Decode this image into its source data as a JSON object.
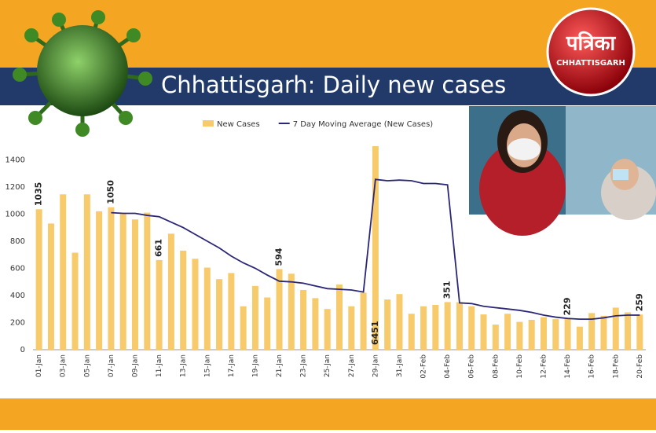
{
  "logo": {
    "name": "पत्रिका",
    "region": "CHHATTISGARH"
  },
  "chart_data": {
    "type": "bar_line",
    "title": "Chhattisgarh: Daily new cases",
    "categories": [
      "01-Jan",
      null,
      "03-Jan",
      null,
      "05-Jan",
      null,
      "07-Jan",
      null,
      "09-Jan",
      null,
      "11-Jan",
      null,
      "13-Jan",
      null,
      "15-Jan",
      null,
      "17-Jan",
      null,
      "19-Jan",
      null,
      "21-Jan",
      null,
      "23-Jan",
      null,
      "25-Jan",
      null,
      "27-Jan",
      null,
      "29-Jan",
      null,
      "31-Jan",
      null,
      "02-Feb",
      null,
      "04-Feb",
      null,
      "06-Feb",
      null,
      "08-Feb",
      null,
      "10-Feb",
      null,
      "12-Feb",
      null,
      "14-Feb",
      null,
      "16-Feb",
      null,
      "18-Feb",
      null,
      "20-Feb"
    ],
    "series": [
      {
        "name": "New Cases",
        "type": "bar",
        "color": "#f7ca6b",
        "values": [
          1035,
          930,
          1145,
          715,
          1145,
          1020,
          1050,
          1000,
          960,
          1010,
          661,
          855,
          730,
          670,
          605,
          520,
          565,
          320,
          470,
          385,
          594,
          560,
          440,
          380,
          300,
          480,
          320,
          420,
          6451,
          370,
          410,
          265,
          320,
          330,
          351,
          350,
          320,
          260,
          185,
          265,
          205,
          220,
          240,
          225,
          229,
          170,
          270,
          250,
          310,
          275,
          259
        ],
        "value_labels": [
          "1035",
          null,
          null,
          null,
          null,
          null,
          "1050",
          null,
          null,
          null,
          "661",
          null,
          null,
          null,
          null,
          null,
          null,
          null,
          null,
          null,
          "594",
          null,
          null,
          null,
          null,
          null,
          null,
          null,
          "6451",
          null,
          null,
          null,
          null,
          null,
          "351",
          null,
          null,
          null,
          null,
          null,
          null,
          null,
          null,
          null,
          "229",
          null,
          null,
          null,
          null,
          null,
          "259"
        ]
      },
      {
        "name": "7 Day Moving Average (New Cases)",
        "type": "line",
        "color": "#2b2778",
        "values": [
          null,
          null,
          null,
          null,
          null,
          null,
          1010,
          1005,
          1005,
          990,
          980,
          940,
          900,
          850,
          800,
          750,
          690,
          640,
          600,
          550,
          505,
          500,
          490,
          470,
          450,
          445,
          440,
          425,
          1255,
          1245,
          1250,
          1245,
          1225,
          1225,
          1215,
          345,
          340,
          320,
          310,
          300,
          290,
          275,
          255,
          240,
          230,
          225,
          225,
          235,
          250,
          255,
          255
        ]
      }
    ],
    "ylim": [
      0,
      1500
    ],
    "yticks": [
      0,
      200,
      400,
      600,
      800,
      1000,
      1200,
      1400
    ],
    "grid": false
  }
}
